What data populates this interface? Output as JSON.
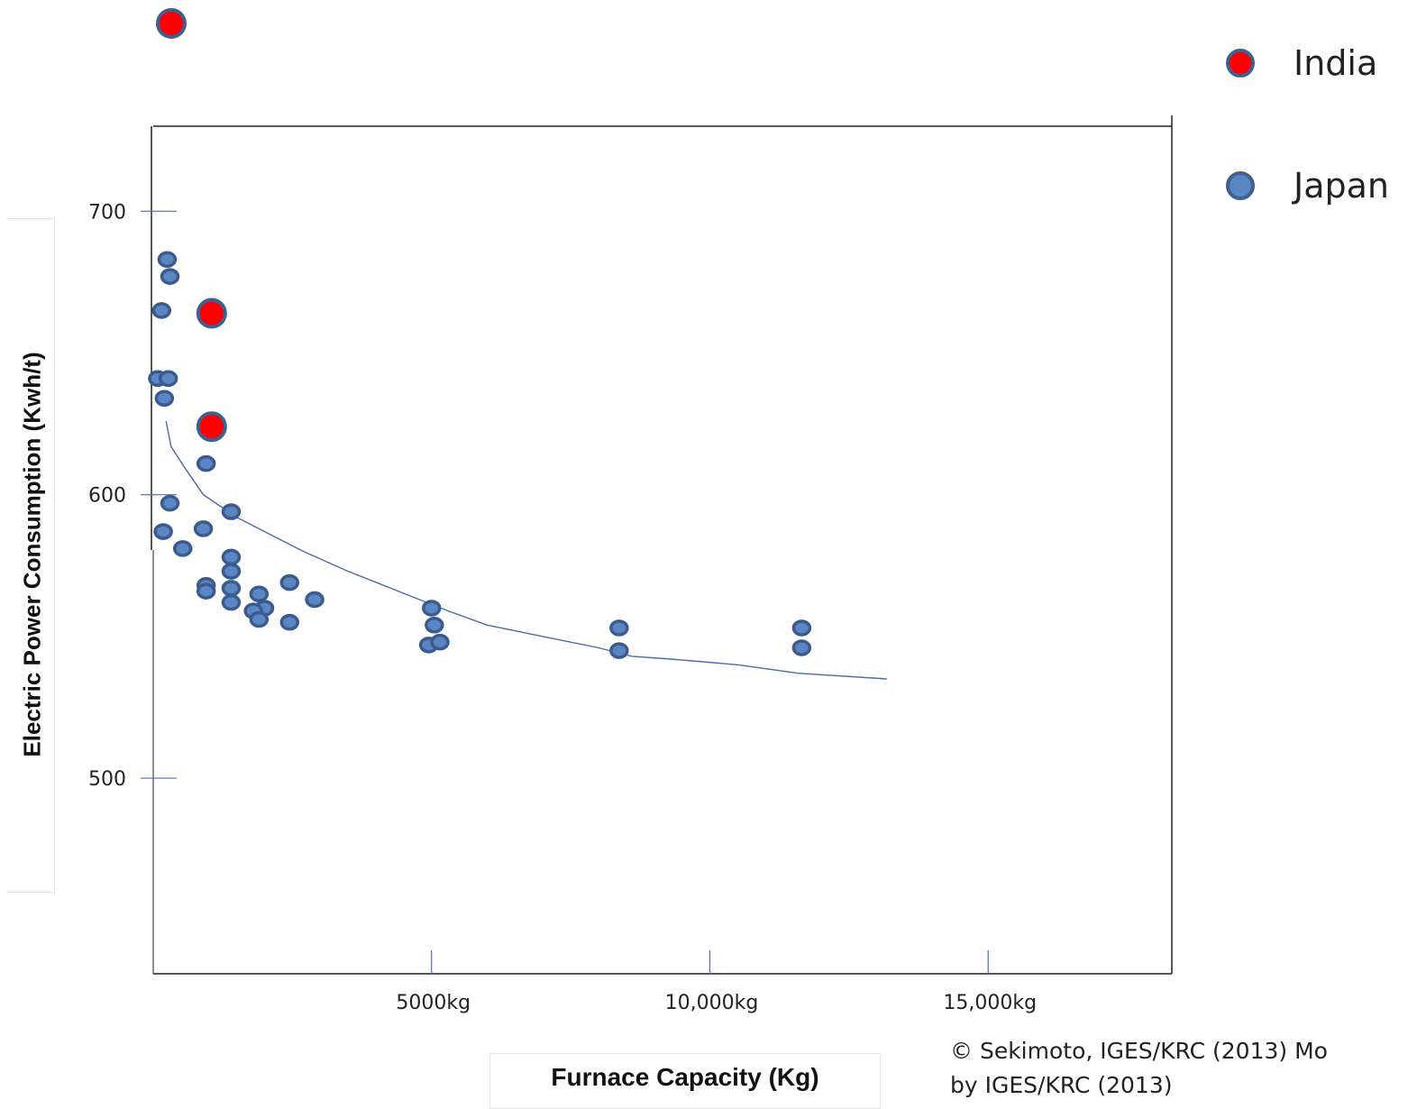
{
  "chart_data": {
    "type": "scatter",
    "xlabel": "Furnace Capacity (Kg)",
    "ylabel": "Electric Power Consumption (Kwh/t)",
    "xlim": [
      0,
      18300
    ],
    "ylim": [
      431,
      730
    ],
    "x_ticks": [
      {
        "value": 5000,
        "label": "5000kg"
      },
      {
        "value": 10000,
        "label": "10,000kg"
      },
      {
        "value": 15000,
        "label": "15,000kg"
      }
    ],
    "y_ticks": [
      {
        "value": 500,
        "label": "500"
      },
      {
        "value": 600,
        "label": "600"
      },
      {
        "value": 700,
        "label": "700"
      }
    ],
    "legend_position": "top-right",
    "series": [
      {
        "name": "India",
        "color": "#ff0000",
        "points": [
          {
            "x": 1050,
            "y": 664
          },
          {
            "x": 1050,
            "y": 624
          }
        ]
      },
      {
        "name": "Japan",
        "color": "#4f81bd",
        "points": [
          {
            "x": 250,
            "y": 683
          },
          {
            "x": 300,
            "y": 677
          },
          {
            "x": 150,
            "y": 665
          },
          {
            "x": 80,
            "y": 641
          },
          {
            "x": 270,
            "y": 641
          },
          {
            "x": 200,
            "y": 634
          },
          {
            "x": 950,
            "y": 611
          },
          {
            "x": 1400,
            "y": 594
          },
          {
            "x": 300,
            "y": 597
          },
          {
            "x": 900,
            "y": 588
          },
          {
            "x": 180,
            "y": 587
          },
          {
            "x": 530,
            "y": 581
          },
          {
            "x": 1400,
            "y": 578
          },
          {
            "x": 1400,
            "y": 573
          },
          {
            "x": 950,
            "y": 568
          },
          {
            "x": 2450,
            "y": 569
          },
          {
            "x": 1400,
            "y": 567
          },
          {
            "x": 950,
            "y": 566
          },
          {
            "x": 1900,
            "y": 565
          },
          {
            "x": 2900,
            "y": 563
          },
          {
            "x": 1400,
            "y": 562
          },
          {
            "x": 2000,
            "y": 560
          },
          {
            "x": 1800,
            "y": 559
          },
          {
            "x": 1900,
            "y": 556
          },
          {
            "x": 2450,
            "y": 555
          },
          {
            "x": 5000,
            "y": 560
          },
          {
            "x": 5050,
            "y": 554
          },
          {
            "x": 4950,
            "y": 547
          },
          {
            "x": 5150,
            "y": 548
          },
          {
            "x": 8370,
            "y": 553
          },
          {
            "x": 8370,
            "y": 545
          },
          {
            "x": 11650,
            "y": 553
          },
          {
            "x": 11650,
            "y": 546
          }
        ]
      }
    ],
    "trendline": {
      "points": [
        {
          "x": 230,
          "y": 626
        },
        {
          "x": 320,
          "y": 617
        },
        {
          "x": 550,
          "y": 610
        },
        {
          "x": 900,
          "y": 600
        },
        {
          "x": 1500,
          "y": 592
        },
        {
          "x": 2000,
          "y": 587
        },
        {
          "x": 2700,
          "y": 580
        },
        {
          "x": 3500,
          "y": 573
        },
        {
          "x": 4400,
          "y": 566
        },
        {
          "x": 5300,
          "y": 559
        },
        {
          "x": 6000,
          "y": 554
        },
        {
          "x": 7000,
          "y": 550
        },
        {
          "x": 8000,
          "y": 546
        },
        {
          "x": 8600,
          "y": 543
        },
        {
          "x": 9300,
          "y": 542
        },
        {
          "x": 10500,
          "y": 540
        },
        {
          "x": 11600,
          "y": 537
        },
        {
          "x": 13180,
          "y": 535
        }
      ]
    }
  },
  "copyright": {
    "line1": "© Sekimoto, IGES/KRC (2013)  Mo",
    "line2": "by IGES/KRC (2013)"
  }
}
